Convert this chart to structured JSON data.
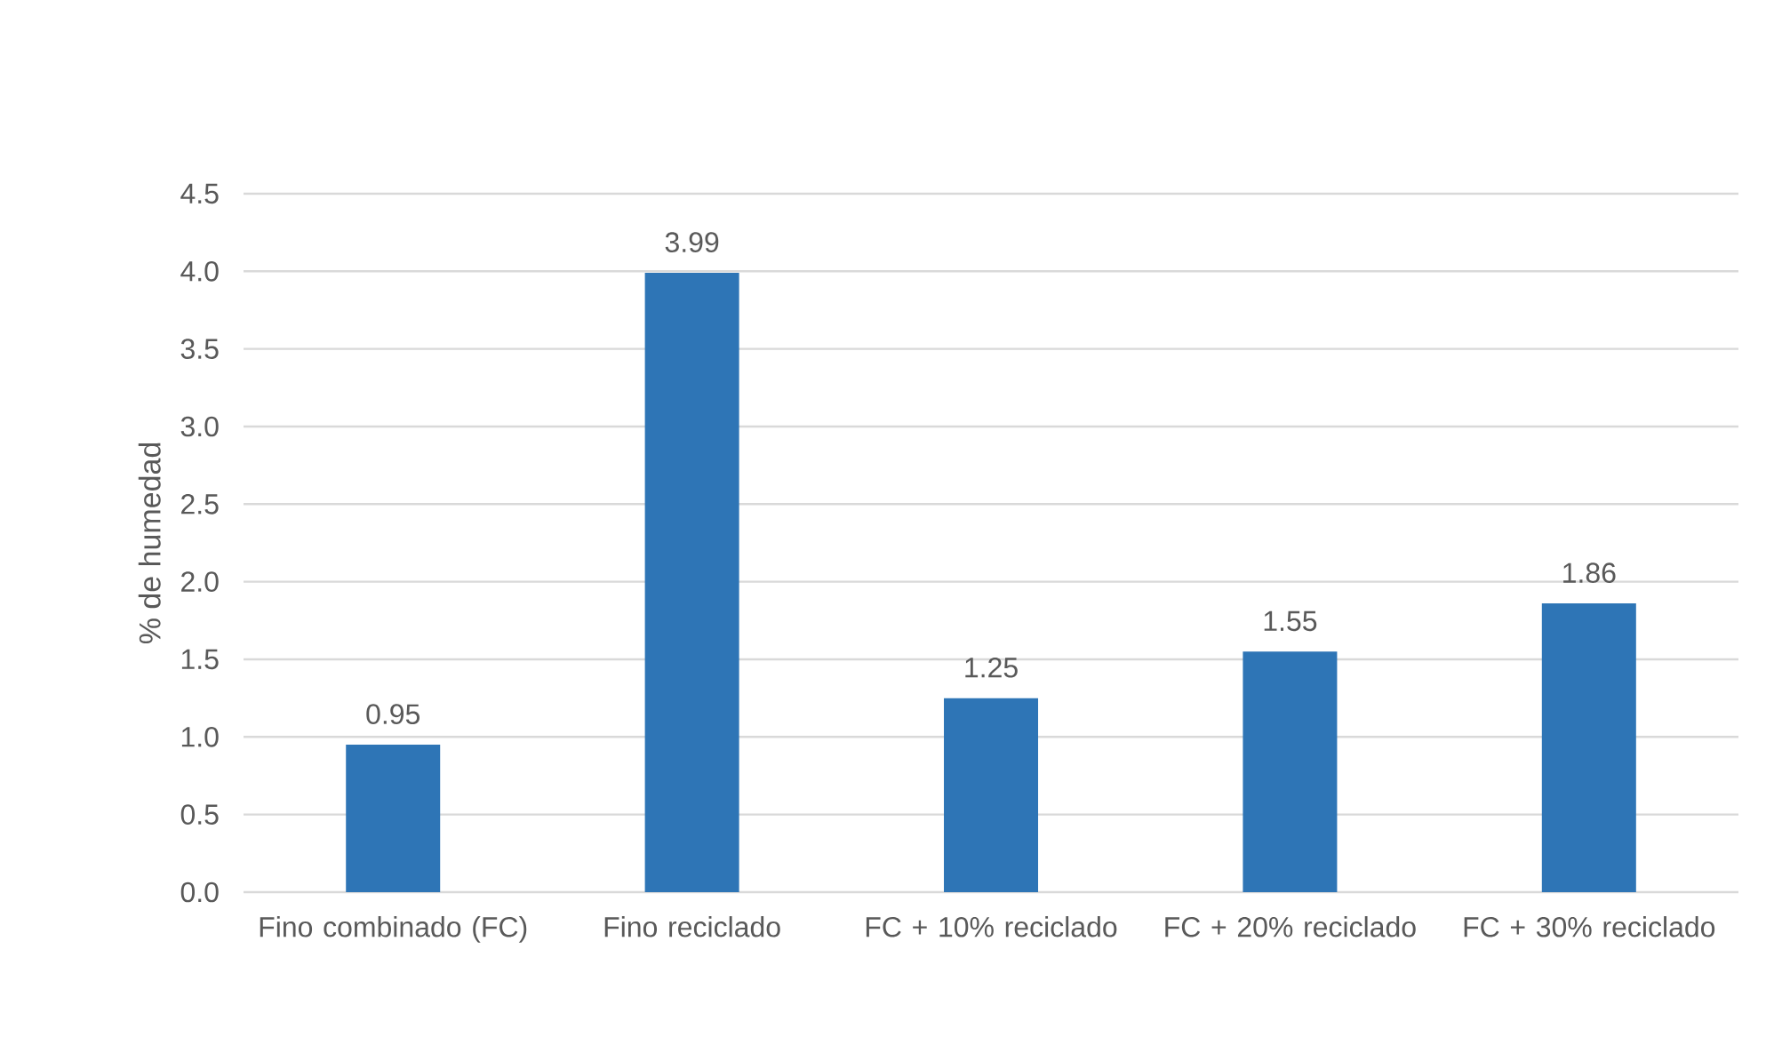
{
  "chart_data": {
    "type": "bar",
    "ylabel": "% de humedad",
    "categories": [
      "Fino combinado (FC)",
      "Fino reciclado",
      "FC + 10% reciclado",
      "FC + 20% reciclado",
      "FC + 30% reciclado"
    ],
    "values": [
      0.95,
      3.99,
      1.25,
      1.55,
      1.86
    ],
    "value_labels": [
      "0.95",
      "3.99",
      "1.25",
      "1.55",
      "1.86"
    ],
    "color": "#2e75b6",
    "ylim": [
      0,
      4.5
    ],
    "yticks": [
      {
        "value": 0,
        "label": "0.0"
      },
      {
        "value": 0.5,
        "label": "0.5"
      },
      {
        "value": 1,
        "label": "1.0"
      },
      {
        "value": 1.5,
        "label": "1.5"
      },
      {
        "value": 2,
        "label": "2.0"
      },
      {
        "value": 2.5,
        "label": "2.5"
      },
      {
        "value": 3,
        "label": "3.0"
      },
      {
        "value": 3.5,
        "label": "3.5"
      },
      {
        "value": 4,
        "label": "4.0"
      },
      {
        "value": 4.5,
        "label": "4.5"
      }
    ],
    "grid": "y"
  }
}
